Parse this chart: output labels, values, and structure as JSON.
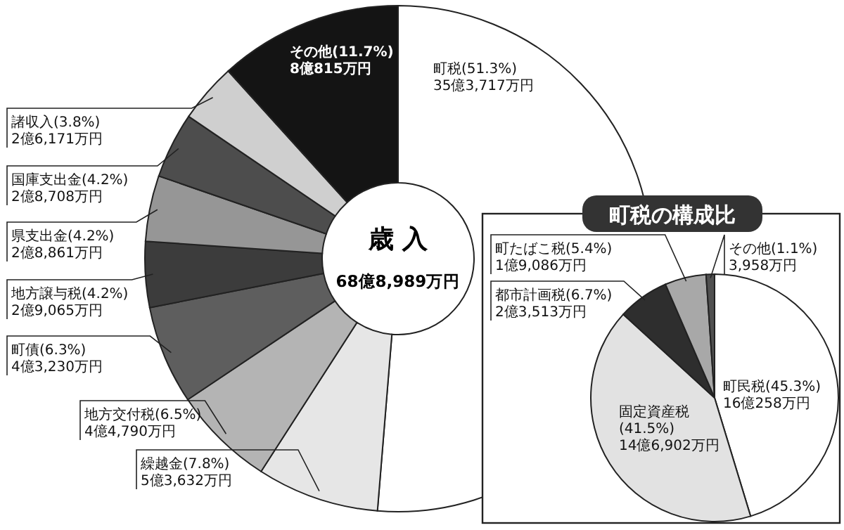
{
  "chart_data": [
    {
      "type": "donut",
      "title": "歳 入",
      "subtitle": "68億8,989万円",
      "categories": [
        "町税",
        "繰越金",
        "地方交付税",
        "町債",
        "地方譲与税",
        "県支出金",
        "国庫支出金",
        "諸収入",
        "その他"
      ],
      "values": [
        51.3,
        7.8,
        6.5,
        6.3,
        4.2,
        4.2,
        4.2,
        3.8,
        11.7
      ],
      "colors": [
        "#ffffff",
        "#e6e6e6",
        "#b4b4b4",
        "#5e5e5e",
        "#3c3c3c",
        "#969696",
        "#4d4d4d",
        "#cfcfcf",
        "#141414"
      ],
      "value_labels": [
        "(51.3%)\n35億3,717万円",
        "(7.8%)\n5億3,632万円",
        "(6.5%)\n4億4,790万円",
        "(6.3%)\n4億3,230万円",
        "(4.2%)\n2億9,065万円",
        "(4.2%)\n2億8,861万円",
        "(4.2%)\n2億8,708万円",
        "(3.8%)\n2億6,171万円",
        "(11.7%)\n8億815万円"
      ]
    },
    {
      "type": "pie",
      "title": "町税の構成比",
      "categories": [
        "町民税",
        "固定資産税",
        "都市計画税",
        "町たばこ税",
        "その他"
      ],
      "values": [
        45.3,
        41.5,
        6.7,
        5.4,
        1.1
      ],
      "colors": [
        "#ffffff",
        "#e2e2e2",
        "#2e2e2e",
        "#a8a8a8",
        "#505050"
      ],
      "value_labels": [
        "(45.3%)\n16億258万円",
        "(41.5%)\n14億6,902万円",
        "(6.7%)\n2億3,513万円",
        "(5.4%)\n1億9,086万円",
        "(1.1%)\n3,958万円"
      ]
    }
  ]
}
